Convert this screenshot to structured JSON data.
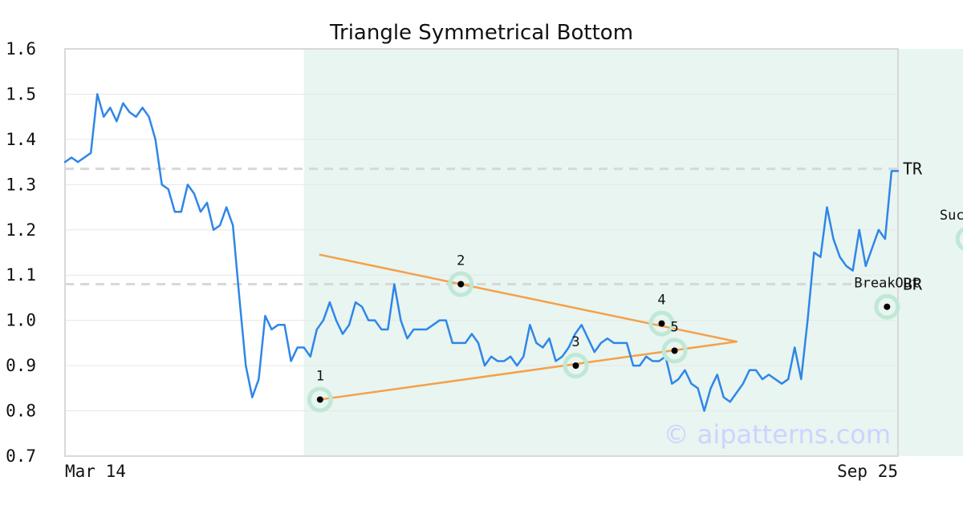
{
  "chart_data": {
    "type": "line",
    "title": "Triangle Symmetrical Bottom",
    "xlabel": "",
    "ylabel": "",
    "x_tick_labels": [
      "Mar 14",
      "Sep 25"
    ],
    "y_ticks": [
      0.7,
      0.8,
      0.9,
      1.0,
      1.1,
      1.2,
      1.3,
      1.4,
      1.5,
      1.6
    ],
    "ylim": [
      0.7,
      1.6
    ],
    "grid": true,
    "colors": {
      "line": "#2f86e8",
      "trend": "#f5a04a",
      "highlight": "#e8f5f0",
      "marker_halo": "#bfe8d6",
      "reference": "#d8d8d8",
      "watermark": "#cfd2ff"
    },
    "pattern_window": {
      "start_index": 37,
      "end_index": 174
    },
    "series": [
      {
        "values": [
          1.35,
          1.36,
          1.35,
          1.36,
          1.37,
          1.5,
          1.45,
          1.47,
          1.44,
          1.48,
          1.46,
          1.45,
          1.47,
          1.45,
          1.4,
          1.3,
          1.29,
          1.24,
          1.24,
          1.3,
          1.28,
          1.24,
          1.26,
          1.2,
          1.21,
          1.25,
          1.21,
          1.05,
          0.9,
          0.83,
          0.87,
          1.01,
          0.98,
          0.99,
          0.99,
          0.91,
          0.94,
          0.94,
          0.92,
          0.98,
          1.0,
          1.04,
          1.0,
          0.97,
          0.99,
          1.04,
          1.03,
          1.0,
          1.0,
          0.98,
          0.98,
          1.08,
          1.0,
          0.96,
          0.98,
          0.98,
          0.98,
          0.99,
          1.0,
          1.0,
          0.95,
          0.95,
          0.95,
          0.97,
          0.95,
          0.9,
          0.92,
          0.91,
          0.91,
          0.92,
          0.9,
          0.92,
          0.99,
          0.95,
          0.94,
          0.96,
          0.91,
          0.92,
          0.94,
          0.97,
          0.99,
          0.96,
          0.93,
          0.95,
          0.96,
          0.95,
          0.95,
          0.95,
          0.9,
          0.9,
          0.92,
          0.91,
          0.91,
          0.92,
          0.86,
          0.87,
          0.89,
          0.86,
          0.85,
          0.8,
          0.85,
          0.88,
          0.83,
          0.82,
          0.84,
          0.86,
          0.89,
          0.89,
          0.87,
          0.88,
          0.87,
          0.86,
          0.87,
          0.94,
          0.87,
          1.0,
          1.15,
          1.14,
          1.25,
          1.18,
          1.14,
          1.12,
          1.11,
          1.2,
          1.12,
          1.16,
          1.2,
          1.18,
          1.33,
          1.33
        ]
      }
    ],
    "reference_lines": [
      {
        "label": "TR",
        "value": 1.335
      },
      {
        "label": "BR",
        "value": 1.08
      }
    ],
    "trend_lines": [
      {
        "from": {
          "index": 39.5,
          "value": 1.145
        },
        "to": {
          "index": 104,
          "value": 0.953
        }
      },
      {
        "from": {
          "index": 39.5,
          "value": 0.825
        },
        "to": {
          "index": 104,
          "value": 0.953
        }
      }
    ],
    "marked_points": [
      {
        "label": "1",
        "index": 39.5,
        "value": 0.825,
        "label_side": "above"
      },
      {
        "label": "2",
        "index": 61.3,
        "value": 1.08,
        "label_side": "above"
      },
      {
        "label": "3",
        "index": 79.1,
        "value": 0.9,
        "label_side": "above"
      },
      {
        "label": "4",
        "index": 92.4,
        "value": 0.993,
        "label_side": "above"
      },
      {
        "label": "5",
        "index": 94.4,
        "value": 0.933,
        "label_side": "above"
      },
      {
        "label": "BreakOut",
        "index": 127.3,
        "value": 1.03,
        "label_side": "above"
      },
      {
        "label": "Success",
        "index": 139.9,
        "value": 1.18,
        "label_side": "above"
      }
    ],
    "watermark": "© aipatterns.com"
  }
}
